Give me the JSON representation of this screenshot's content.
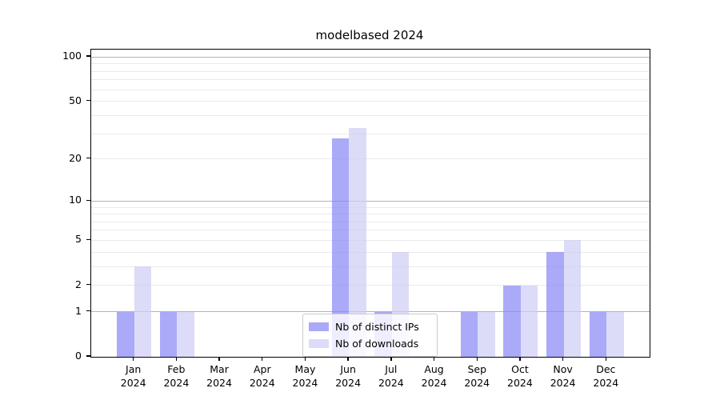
{
  "figure": {
    "title": "modelbased 2024",
    "background": "#ffffff"
  },
  "chart_data": {
    "type": "bar",
    "title": "modelbased 2024",
    "categories": [
      "Jan",
      "Feb",
      "Mar",
      "Apr",
      "May",
      "Jun",
      "Jul",
      "Aug",
      "Sep",
      "Oct",
      "Nov",
      "Dec"
    ],
    "category_year": "2024",
    "series": [
      {
        "name": "Nb of distinct IPs",
        "key": "distinct-ips",
        "color": "rgba(134,134,246,0.7)",
        "values": [
          1,
          1,
          0,
          0,
          0,
          28,
          1,
          0,
          1,
          2,
          4,
          1
        ]
      },
      {
        "name": "Nb of downloads",
        "key": "downloads",
        "color": "rgba(205,205,245,0.7)",
        "values": [
          3,
          1,
          0,
          0,
          0,
          33,
          4,
          0,
          1,
          2,
          5,
          1
        ]
      }
    ],
    "xlabel": "",
    "ylabel": "",
    "yscale": "log1p",
    "ylim": [
      0,
      112
    ],
    "yticks": [
      0,
      1,
      2,
      5,
      10,
      20,
      50,
      100
    ],
    "ytick_labels": [
      "0",
      "1",
      "2",
      "5",
      "10",
      "20",
      "50",
      "100"
    ],
    "major_gridlines": [
      1,
      10,
      100
    ],
    "minor_gridlines": [
      2,
      3,
      4,
      5,
      6,
      7,
      8,
      9,
      20,
      30,
      40,
      50,
      60,
      70,
      80,
      90
    ],
    "grid": true,
    "legend_position": "lower center (inside plot)"
  },
  "colors": {
    "distinct_ips_bar_displayed": "#aaaaf7",
    "downloads_bar_displayed": "#dcdcf9",
    "major_grid": "#b4b4b4",
    "minor_grid": "#eaeaea",
    "spine": "#000000",
    "legend_border": "#cccccc",
    "text": "#000000"
  }
}
